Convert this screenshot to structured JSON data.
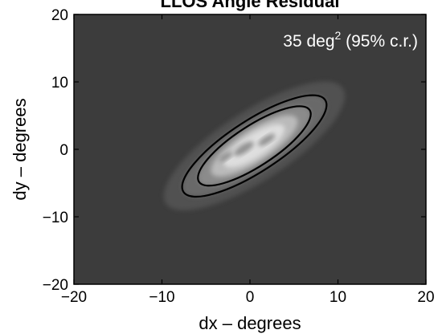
{
  "chart_data": {
    "type": "heatmap",
    "title": "LLOS Angle Residual",
    "xlabel": "dx – degrees",
    "ylabel": "dy – degrees",
    "xlim": [
      -20,
      20
    ],
    "ylim": [
      -20,
      20
    ],
    "xticks": [
      -20,
      -10,
      0,
      10,
      20
    ],
    "yticks": [
      -20,
      -10,
      0,
      10,
      20
    ],
    "annotation": {
      "value": "35 deg",
      "superscript": "2",
      "suffix": " (95% c.r.)"
    },
    "colormap": "grayscale",
    "grid": false,
    "colors": {
      "background": "#3c3c3c",
      "contour": "#000000",
      "annotation": "#ffffff"
    },
    "distribution": {
      "center": [
        0.5,
        0.5
      ],
      "orientation_deg": 33,
      "contours": [
        {
          "level": "outer",
          "semi_major": 9.6,
          "semi_minor": 3.8
        },
        {
          "level": "95% c.r.",
          "semi_major": 7.5,
          "semi_minor": 3.0
        }
      ]
    }
  }
}
